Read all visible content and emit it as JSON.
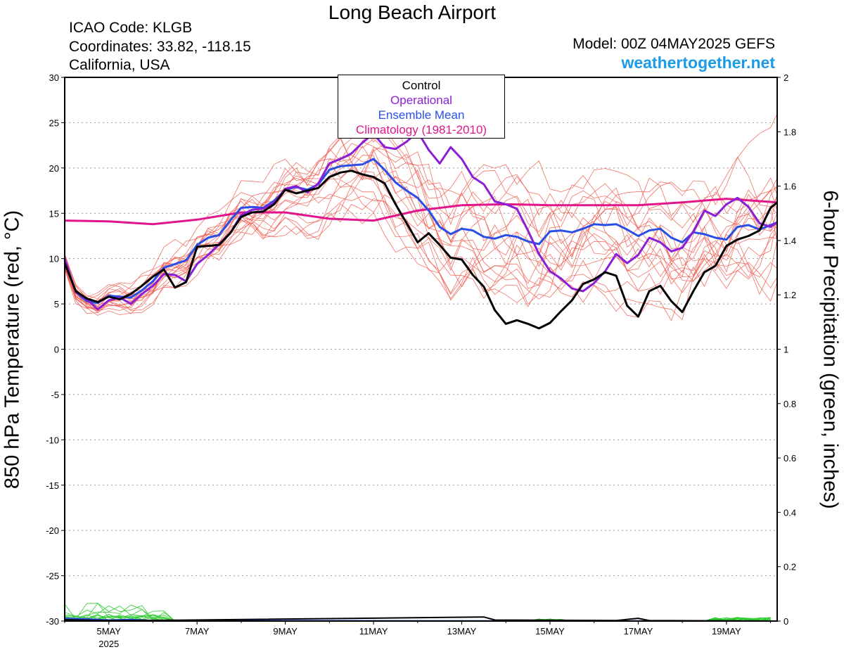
{
  "title": "Long Beach Airport",
  "info": {
    "icao": "ICAO Code: KLGB",
    "coords": "Coordinates: 33.82, -118.15",
    "region": "California, USA"
  },
  "model": "Model: 00Z 04MAY2025 GEFS",
  "site": "weathertogether.net",
  "left_axis_label": "850 hPa Temperature (red, °C)",
  "right_axis_label": "6-hour Precipitation (green, inches)",
  "legend": [
    {
      "label": "Control",
      "color": "#000000"
    },
    {
      "label": "Operational",
      "color": "#8a1fd6"
    },
    {
      "label": "Ensemble Mean",
      "color": "#2a4fe6"
    },
    {
      "label": "Climatology (1981-2010)",
      "color": "#e0168a"
    }
  ],
  "chart_data": {
    "type": "line",
    "x_start": "2025-05-04T00Z",
    "x_end": "2025-05-20T00Z",
    "x_ticks": [
      "5MAY",
      "7MAY",
      "9MAY",
      "11MAY",
      "13MAY",
      "15MAY",
      "17MAY",
      "19MAY"
    ],
    "x_year_label": "2025",
    "ylim_left": [
      -30,
      30
    ],
    "yticks_left": [
      30,
      25,
      20,
      15,
      10,
      5,
      0,
      -5,
      -10,
      -15,
      -20,
      -25,
      -30
    ],
    "ylim_right": [
      0,
      2
    ],
    "yticks_right": [
      "2",
      "1.8",
      "1.6",
      "1.4",
      "1.2",
      "1",
      "0.8",
      "0.6",
      "0.4",
      "0.2",
      "0"
    ],
    "grid": "dotted horizontal",
    "series": [
      {
        "name": "Control",
        "color": "#000000",
        "values": [
          [
            4.0,
            9.5
          ],
          [
            4.25,
            6.4
          ],
          [
            4.5,
            5.6
          ],
          [
            4.75,
            5.2
          ],
          [
            5.0,
            5.8
          ],
          [
            5.25,
            5.5
          ],
          [
            5.5,
            6.1
          ],
          [
            5.75,
            7.0
          ],
          [
            6.0,
            8.0
          ],
          [
            6.25,
            8.8
          ],
          [
            6.5,
            6.8
          ],
          [
            6.75,
            7.4
          ],
          [
            7.0,
            11.3
          ],
          [
            7.25,
            11.4
          ],
          [
            7.5,
            11.5
          ],
          [
            7.75,
            12.8
          ],
          [
            8.0,
            14.6
          ],
          [
            8.25,
            15.1
          ],
          [
            8.5,
            15.2
          ],
          [
            8.75,
            16.0
          ],
          [
            9.0,
            17.6
          ],
          [
            9.25,
            17.2
          ],
          [
            9.5,
            17.5
          ],
          [
            9.75,
            17.8
          ],
          [
            10.0,
            19.0
          ],
          [
            10.25,
            19.5
          ],
          [
            10.5,
            19.7
          ],
          [
            10.75,
            19.3
          ],
          [
            11.0,
            19.0
          ],
          [
            11.25,
            18.3
          ],
          [
            11.5,
            16.0
          ],
          [
            11.75,
            13.9
          ],
          [
            12.0,
            11.8
          ],
          [
            12.25,
            12.8
          ],
          [
            12.5,
            11.5
          ],
          [
            12.75,
            10.1
          ],
          [
            13.0,
            9.9
          ],
          [
            13.25,
            8.2
          ],
          [
            13.5,
            6.9
          ],
          [
            13.75,
            4.3
          ],
          [
            14.0,
            2.8
          ],
          [
            14.25,
            3.2
          ],
          [
            14.5,
            2.8
          ],
          [
            14.75,
            2.3
          ],
          [
            15.0,
            2.9
          ],
          [
            15.25,
            4.2
          ],
          [
            15.5,
            5.4
          ],
          [
            15.75,
            7.2
          ],
          [
            16.0,
            7.7
          ],
          [
            16.25,
            8.5
          ],
          [
            16.5,
            8.1
          ],
          [
            16.75,
            4.8
          ],
          [
            17.0,
            3.6
          ],
          [
            17.25,
            6.4
          ],
          [
            17.5,
            7.0
          ],
          [
            17.75,
            5.3
          ],
          [
            18.0,
            4.1
          ],
          [
            18.25,
            6.4
          ],
          [
            18.5,
            8.5
          ],
          [
            18.75,
            9.2
          ],
          [
            19.0,
            11.4
          ],
          [
            19.25,
            12.1
          ],
          [
            19.5,
            12.5
          ],
          [
            19.75,
            13.1
          ],
          [
            20.0,
            15.6
          ],
          [
            20.15,
            16.2
          ]
        ]
      },
      {
        "name": "Operational",
        "color": "#8a1fd6",
        "values": [
          [
            4.0,
            10.0
          ],
          [
            4.25,
            6.3
          ],
          [
            4.5,
            5.5
          ],
          [
            4.75,
            4.4
          ],
          [
            5.0,
            5.4
          ],
          [
            5.25,
            5.7
          ],
          [
            5.5,
            5.0
          ],
          [
            5.75,
            6.1
          ],
          [
            6.0,
            7.0
          ],
          [
            6.25,
            8.3
          ],
          [
            6.5,
            8.2
          ],
          [
            6.75,
            7.5
          ],
          [
            7.0,
            9.4
          ],
          [
            7.25,
            10.4
          ],
          [
            7.5,
            11.6
          ],
          [
            7.75,
            12.8
          ],
          [
            8.0,
            14.8
          ],
          [
            8.25,
            15.4
          ],
          [
            8.5,
            15.5
          ],
          [
            8.75,
            16.2
          ],
          [
            9.0,
            17.7
          ],
          [
            9.25,
            18.0
          ],
          [
            9.5,
            17.3
          ],
          [
            9.75,
            18.3
          ],
          [
            10.0,
            20.5
          ],
          [
            10.25,
            21.0
          ],
          [
            10.5,
            21.6
          ],
          [
            10.75,
            22.8
          ],
          [
            11.0,
            23.8
          ],
          [
            11.25,
            22.3
          ],
          [
            11.5,
            22.1
          ],
          [
            11.75,
            22.9
          ],
          [
            12.0,
            24.0
          ],
          [
            12.25,
            22.0
          ],
          [
            12.5,
            20.5
          ],
          [
            12.75,
            22.3
          ],
          [
            13.0,
            21.0
          ],
          [
            13.25,
            19.0
          ],
          [
            13.5,
            18.2
          ],
          [
            13.75,
            16.3
          ],
          [
            14.0,
            16.0
          ],
          [
            14.25,
            15.5
          ],
          [
            14.5,
            13.1
          ],
          [
            14.75,
            10.5
          ],
          [
            15.0,
            8.6
          ],
          [
            15.25,
            7.8
          ],
          [
            15.5,
            6.7
          ],
          [
            15.75,
            6.4
          ],
          [
            16.0,
            7.3
          ],
          [
            16.25,
            8.6
          ],
          [
            16.5,
            10.5
          ],
          [
            16.75,
            9.5
          ],
          [
            17.0,
            10.4
          ],
          [
            17.25,
            12.3
          ],
          [
            17.5,
            11.8
          ],
          [
            17.75,
            10.8
          ],
          [
            18.0,
            11.2
          ],
          [
            18.25,
            13.0
          ],
          [
            18.5,
            15.3
          ],
          [
            18.75,
            14.7
          ],
          [
            19.0,
            16.0
          ],
          [
            19.25,
            16.7
          ],
          [
            19.5,
            15.7
          ],
          [
            19.75,
            13.9
          ],
          [
            20.0,
            13.5
          ],
          [
            20.15,
            14.0
          ]
        ]
      },
      {
        "name": "Ensemble Mean",
        "color": "#2a4fe6",
        "values": [
          [
            4.0,
            9.8
          ],
          [
            4.25,
            6.3
          ],
          [
            4.5,
            5.3
          ],
          [
            4.75,
            5.1
          ],
          [
            5.0,
            5.9
          ],
          [
            5.25,
            5.8
          ],
          [
            5.5,
            5.7
          ],
          [
            5.75,
            6.5
          ],
          [
            6.0,
            7.5
          ],
          [
            6.25,
            9.0
          ],
          [
            6.5,
            9.4
          ],
          [
            6.75,
            9.8
          ],
          [
            7.0,
            11.5
          ],
          [
            7.25,
            12.3
          ],
          [
            7.5,
            12.6
          ],
          [
            7.75,
            14.2
          ],
          [
            8.0,
            15.6
          ],
          [
            8.25,
            15.7
          ],
          [
            8.5,
            15.6
          ],
          [
            8.75,
            16.4
          ],
          [
            9.0,
            17.6
          ],
          [
            9.25,
            17.9
          ],
          [
            9.5,
            17.6
          ],
          [
            9.75,
            18.2
          ],
          [
            10.0,
            19.8
          ],
          [
            10.25,
            20.2
          ],
          [
            10.5,
            20.3
          ],
          [
            10.75,
            20.4
          ],
          [
            11.0,
            21.0
          ],
          [
            11.25,
            19.8
          ],
          [
            11.5,
            18.4
          ],
          [
            11.75,
            17.5
          ],
          [
            12.0,
            16.7
          ],
          [
            12.25,
            15.3
          ],
          [
            12.5,
            13.5
          ],
          [
            12.75,
            12.7
          ],
          [
            13.0,
            13.3
          ],
          [
            13.25,
            13.1
          ],
          [
            13.5,
            12.4
          ],
          [
            13.75,
            12.2
          ],
          [
            14.0,
            12.6
          ],
          [
            14.25,
            12.4
          ],
          [
            14.5,
            11.9
          ],
          [
            14.75,
            11.6
          ],
          [
            15.0,
            13.0
          ],
          [
            15.25,
            13.1
          ],
          [
            15.5,
            12.9
          ],
          [
            15.75,
            13.3
          ],
          [
            16.0,
            13.8
          ],
          [
            16.25,
            13.7
          ],
          [
            16.5,
            13.8
          ],
          [
            16.75,
            13.2
          ],
          [
            17.0,
            12.5
          ],
          [
            17.25,
            13.1
          ],
          [
            17.5,
            13.3
          ],
          [
            17.75,
            12.3
          ],
          [
            18.0,
            11.8
          ],
          [
            18.25,
            12.9
          ],
          [
            18.5,
            12.7
          ],
          [
            18.75,
            12.3
          ],
          [
            19.0,
            12.1
          ],
          [
            19.25,
            13.5
          ],
          [
            19.5,
            13.7
          ],
          [
            19.75,
            13.2
          ],
          [
            20.0,
            13.7
          ],
          [
            20.15,
            14.0
          ]
        ]
      },
      {
        "name": "Climatology (1981-2010)",
        "color": "#e0168a",
        "values": [
          [
            4.0,
            14.2
          ],
          [
            5.0,
            14.1
          ],
          [
            6.0,
            13.8
          ],
          [
            7.0,
            14.3
          ],
          [
            8.0,
            15.1
          ],
          [
            9.0,
            15.1
          ],
          [
            10.0,
            14.4
          ],
          [
            11.0,
            14.2
          ],
          [
            12.0,
            15.3
          ],
          [
            13.0,
            15.9
          ],
          [
            14.0,
            16.0
          ],
          [
            15.0,
            15.9
          ],
          [
            16.0,
            15.9
          ],
          [
            17.0,
            15.9
          ],
          [
            18.0,
            16.2
          ],
          [
            19.0,
            16.6
          ],
          [
            20.15,
            16.2
          ]
        ]
      }
    ],
    "precip_control": [
      [
        4.0,
        0.005
      ],
      [
        5.0,
        0.002
      ],
      [
        6.5,
        0.003
      ],
      [
        13.5,
        0.015
      ],
      [
        13.75,
        0.004
      ],
      [
        16.5,
        0.002
      ],
      [
        17.0,
        0.01
      ],
      [
        17.25,
        0.002
      ],
      [
        20.0,
        0.0
      ]
    ],
    "precip_mean": [
      [
        4.0,
        0.01
      ],
      [
        4.5,
        0.008
      ],
      [
        5.0,
        0.004
      ],
      [
        5.5,
        0.006
      ],
      [
        6.0,
        0.002
      ],
      [
        20.0,
        0.0
      ]
    ]
  }
}
